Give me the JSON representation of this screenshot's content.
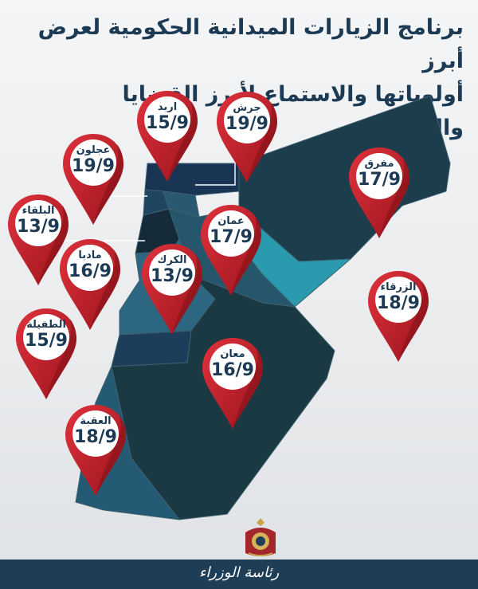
{
  "title": {
    "line1": "برنامج الزيارات الميدانية الحكومية لعرض أبرز",
    "line2": "أولوياتها والاستماع لأبرز القضايا والتحديات"
  },
  "pins": [
    {
      "id": "irbid",
      "name": "اربد",
      "date": "15/9"
    },
    {
      "id": "jerash",
      "name": "جرش",
      "date": "19/9"
    },
    {
      "id": "ajloun",
      "name": "عجلون",
      "date": "19/9"
    },
    {
      "id": "mafraq",
      "name": "مفرق",
      "date": "17/9"
    },
    {
      "id": "balqa",
      "name": "البلقاء",
      "date": "13/9"
    },
    {
      "id": "amman",
      "name": "عمان",
      "date": "17/9"
    },
    {
      "id": "madaba",
      "name": "مادبا",
      "date": "16/9"
    },
    {
      "id": "karak",
      "name": "الكرك",
      "date": "13/9"
    },
    {
      "id": "zarqa",
      "name": "الزرقاء",
      "date": "18/9"
    },
    {
      "id": "tafilah",
      "name": "الطفيلة",
      "date": "15/9"
    },
    {
      "id": "maan",
      "name": "معان",
      "date": "16/9"
    },
    {
      "id": "aqaba",
      "name": "العقبة",
      "date": "18/9"
    }
  ],
  "footer": {
    "signature": "رئاسة الوزراء"
  },
  "colors": {
    "title": "#1c3a53",
    "pin_red": "#c8202b",
    "pin_dark_red": "#8e1119",
    "map_dark": "#1c3f4f",
    "map_teal": "#2a9aaf",
    "footer": "#1e3d57"
  },
  "icons": {
    "emblem": "royal-coat-of-arms-icon",
    "pin": "map-pin-icon"
  }
}
